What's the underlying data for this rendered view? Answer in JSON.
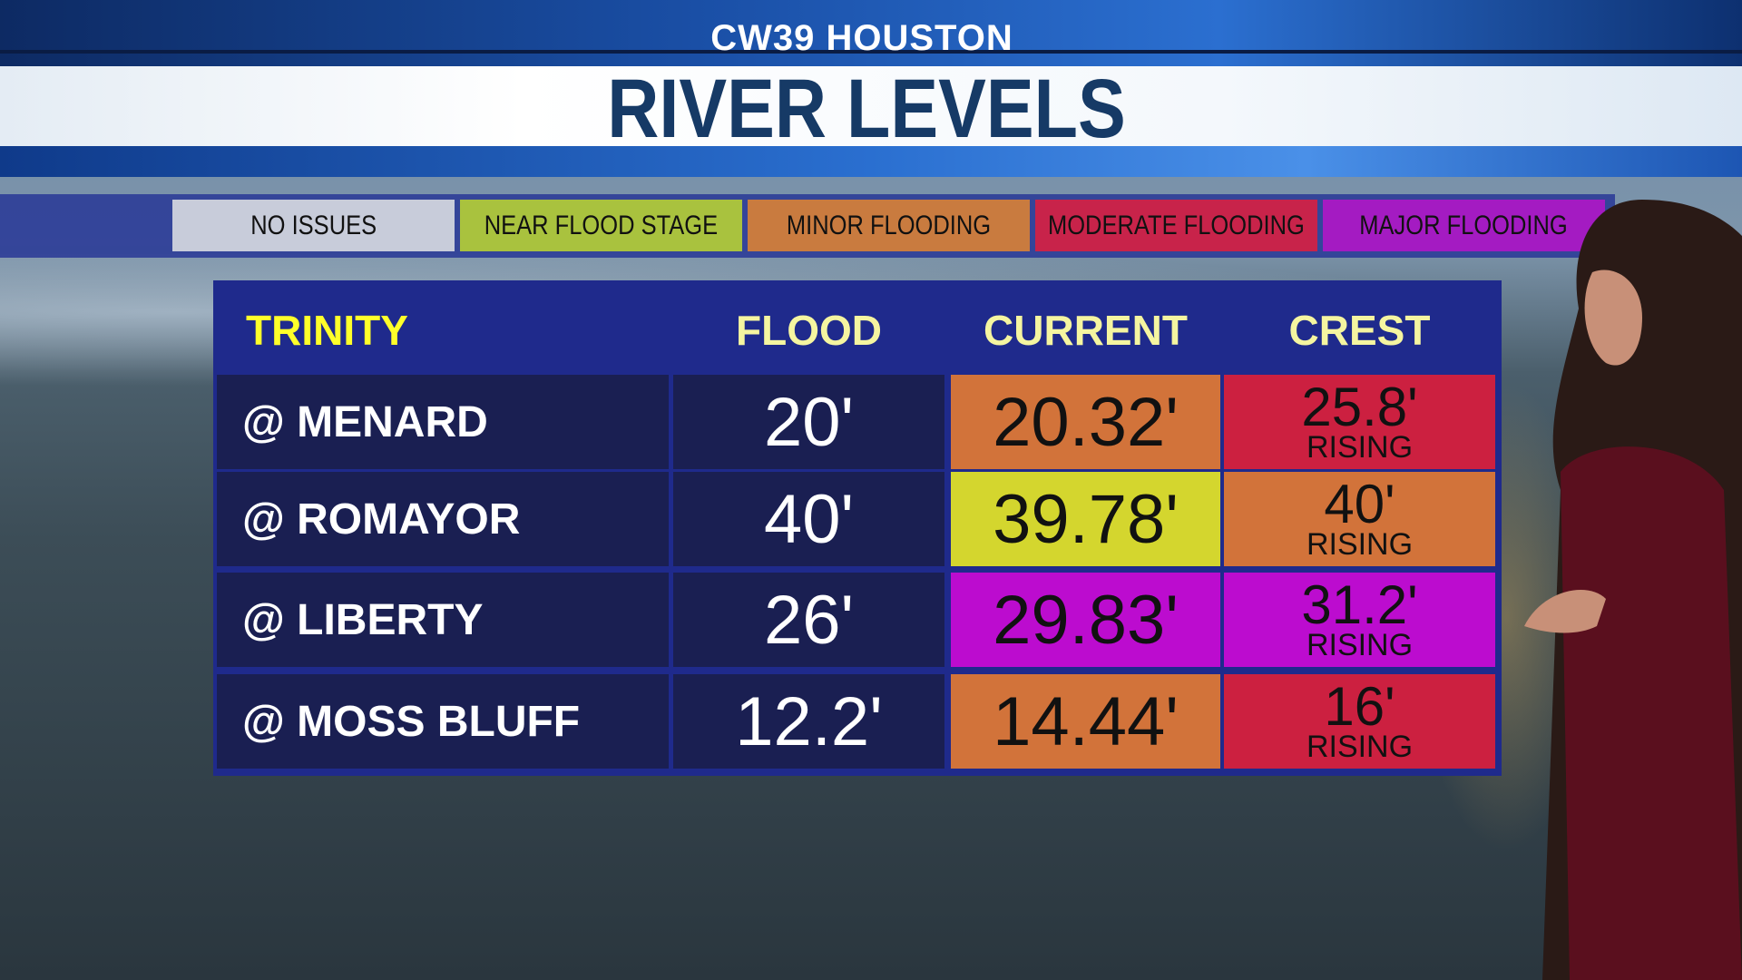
{
  "header": {
    "station": "CW39 HOUSTON",
    "title": "RIVER LEVELS"
  },
  "legend": [
    {
      "label": "NO ISSUES",
      "color": "#c8ccda"
    },
    {
      "label": "NEAR FLOOD STAGE",
      "color": "#a9c23e"
    },
    {
      "label": "MINOR FLOODING",
      "color": "#c97b3f"
    },
    {
      "label": "MODERATE FLOODING",
      "color": "#c8234a"
    },
    {
      "label": "MAJOR FLOODING",
      "color": "#a41bc2"
    }
  ],
  "table": {
    "river": "TRINITY",
    "columns": [
      "FLOOD",
      "CURRENT",
      "CREST"
    ],
    "rows": [
      {
        "location": "@ MENARD",
        "flood": "20'",
        "current": "20.32'",
        "current_color": "#d2733a",
        "crest": "25.8'",
        "crest_trend": "RISING",
        "crest_color": "#cc2040"
      },
      {
        "location": "@ ROMAYOR",
        "flood": "40'",
        "current": "39.78'",
        "current_color": "#d4d62e",
        "crest": "40'",
        "crest_trend": "RISING",
        "crest_color": "#d2733a"
      },
      {
        "location": "@ LIBERTY",
        "flood": "26'",
        "current": "29.83'",
        "current_color": "#bc0ccf",
        "crest": "31.2'",
        "crest_trend": "RISING",
        "crest_color": "#bc0ccf"
      },
      {
        "location": "@ MOSS BLUFF",
        "flood": "12.2'",
        "current": "14.44'",
        "current_color": "#d2733a",
        "crest": "16'",
        "crest_trend": "RISING",
        "crest_color": "#cc2040"
      }
    ]
  }
}
